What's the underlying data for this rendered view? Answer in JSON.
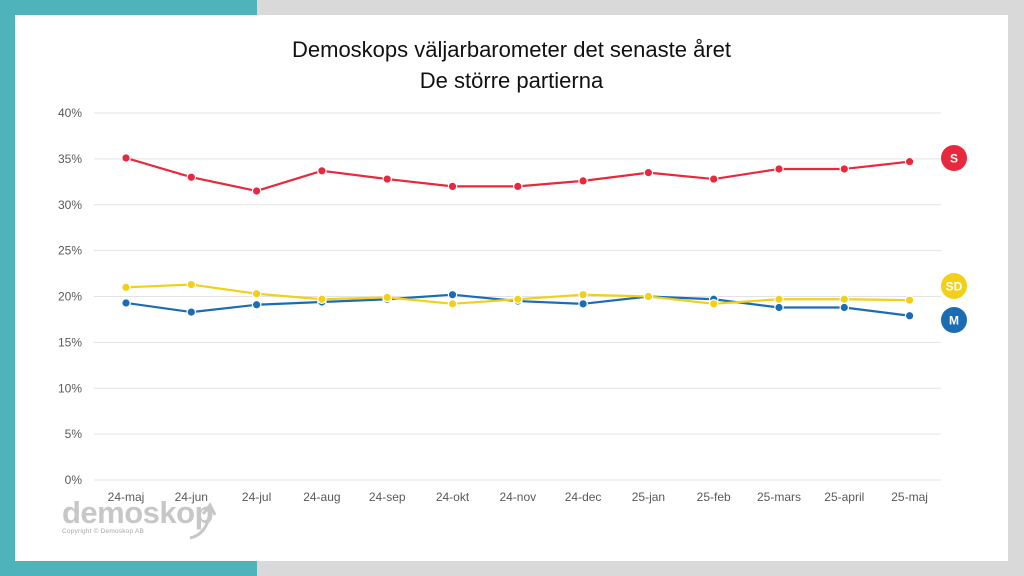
{
  "chart_data": {
    "type": "line",
    "title": "Demoskops väljarbarometer det senaste året",
    "subtitle": "De större partierna",
    "xlabel": "",
    "ylabel": "",
    "ylim": [
      0,
      40
    ],
    "grid": true,
    "categories": [
      "24-maj",
      "24-jun",
      "24-jul",
      "24-aug",
      "24-sep",
      "24-okt",
      "24-nov",
      "24-dec",
      "25-jan",
      "25-feb",
      "25-mars",
      "25-april",
      "25-maj"
    ],
    "y_ticks": [
      "0%",
      "5%",
      "10%",
      "15%",
      "20%",
      "25%",
      "30%",
      "35%",
      "40%"
    ],
    "series": [
      {
        "name": "M",
        "color": "#1a6cb5",
        "values": [
          19.3,
          18.3,
          19.1,
          19.4,
          19.7,
          20.2,
          19.5,
          19.2,
          20.0,
          19.7,
          18.8,
          18.8,
          17.9
        ]
      },
      {
        "name": "SD",
        "color": "#f2d01a",
        "values": [
          21.0,
          21.3,
          20.3,
          19.7,
          19.9,
          19.2,
          19.7,
          20.2,
          20.0,
          19.2,
          19.7,
          19.7,
          19.6
        ]
      },
      {
        "name": "S",
        "color": "#e8283c",
        "values": [
          35.1,
          33.0,
          31.5,
          33.7,
          32.8,
          32.0,
          32.0,
          32.6,
          33.5,
          32.8,
          33.9,
          33.9,
          34.7
        ]
      }
    ]
  },
  "branding": {
    "logo_text": "demoskop",
    "copyright": "Copyright © Demoskop AB"
  }
}
